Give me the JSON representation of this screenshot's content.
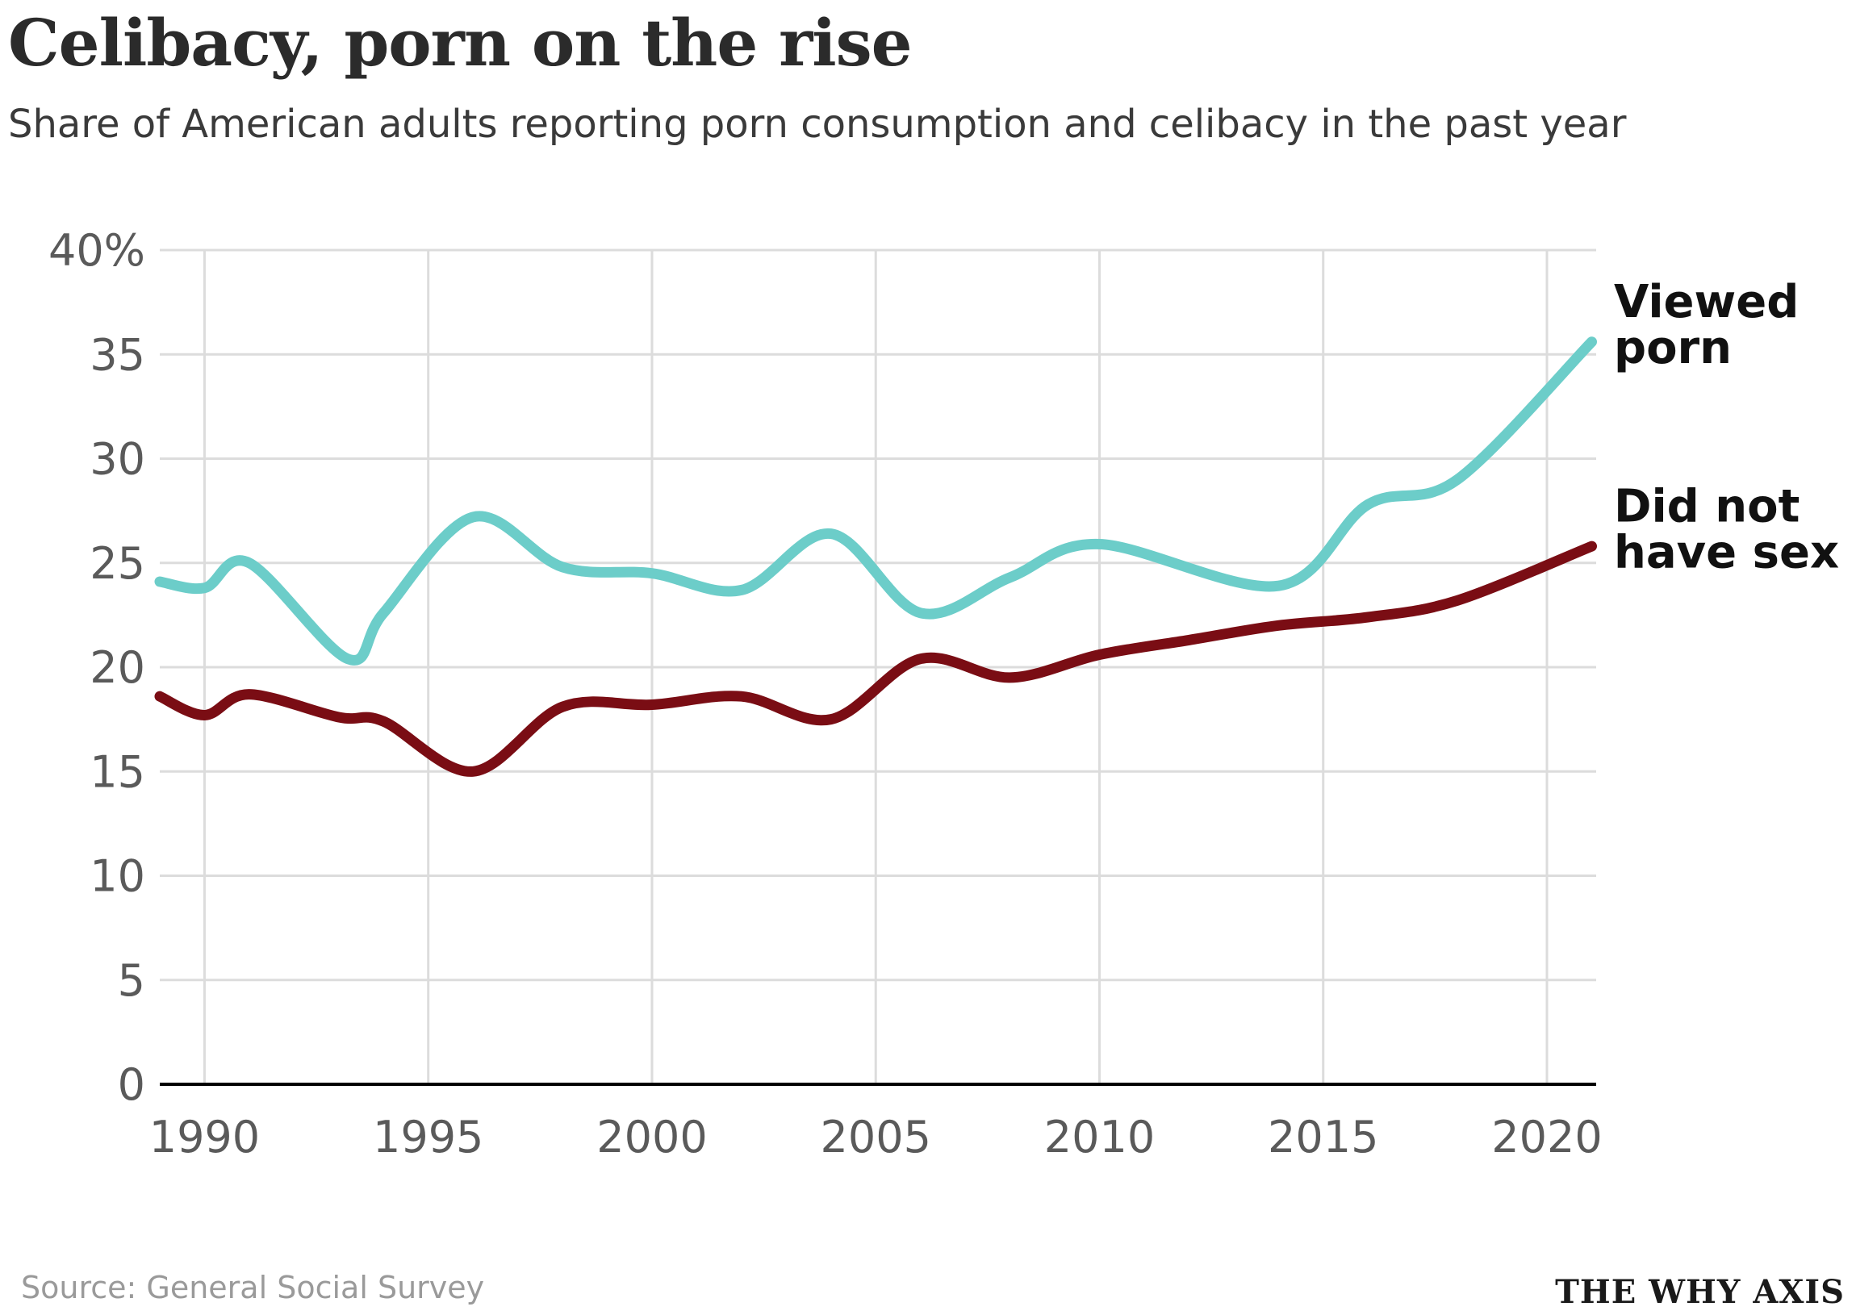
{
  "header": {
    "title": "Celibacy, porn on the rise",
    "subtitle": "Share of American adults reporting porn consumption and celibacy in the past year"
  },
  "footer": {
    "source": "Source: General Social Survey",
    "brand": "THE WHY AXIS"
  },
  "colors": {
    "porn": "#6ccdc9",
    "celibacy": "#7a0d14",
    "grid": "#dcdcdc",
    "axis": "#000000"
  },
  "chart_data": {
    "type": "line",
    "title": "Celibacy, porn on the rise",
    "xlabel": "",
    "ylabel": "",
    "xlim": [
      1989,
      2021.1
    ],
    "ylim": [
      0,
      40
    ],
    "x_ticks": [
      1990,
      1995,
      2000,
      2005,
      2010,
      2015,
      2020
    ],
    "y_ticks": [
      0,
      5,
      10,
      15,
      20,
      25,
      30,
      35,
      40
    ],
    "y_tick_labels": [
      "0",
      "5",
      "10",
      "15",
      "20",
      "25",
      "30",
      "35",
      "40%"
    ],
    "grid": true,
    "series": [
      {
        "name": "Viewed porn",
        "label_lines": [
          "Viewed",
          "porn"
        ],
        "x": [
          1989,
          1990,
          1991,
          1993.2,
          1994,
          1996,
          1998,
          2000,
          2002,
          2004,
          2006,
          2008,
          2010,
          2014,
          2016,
          2018,
          2021
        ],
        "values": [
          24.1,
          23.8,
          25,
          20.4,
          22.6,
          27.2,
          24.8,
          24.5,
          23.7,
          26.4,
          22.6,
          24.3,
          25.9,
          23.9,
          27.8,
          29,
          35.6
        ]
      },
      {
        "name": "Did not have sex",
        "label_lines": [
          "Did not",
          "have sex"
        ],
        "x": [
          1989,
          1990,
          1991,
          1993,
          1994,
          1996,
          1998,
          2000,
          2002,
          2004,
          2006,
          2008,
          2010,
          2012,
          2014,
          2016,
          2018,
          2021
        ],
        "values": [
          18.6,
          17.7,
          18.7,
          17.6,
          17.4,
          15,
          18.1,
          18.2,
          18.6,
          17.5,
          20.4,
          19.5,
          20.6,
          21.3,
          22,
          22.4,
          23.2,
          25.8
        ]
      }
    ]
  }
}
